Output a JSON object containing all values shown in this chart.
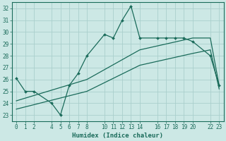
{
  "xlabel": "Humidex (Indice chaleur)",
  "bg_color": "#cce8e5",
  "grid_color": "#aacfcc",
  "line_color": "#1a6b5a",
  "xlim": [
    -0.5,
    23.5
  ],
  "ylim": [
    22.5,
    32.5
  ],
  "xticks": [
    0,
    1,
    2,
    4,
    5,
    6,
    7,
    8,
    10,
    11,
    12,
    13,
    14,
    16,
    17,
    18,
    19,
    20,
    22,
    23
  ],
  "yticks": [
    23,
    24,
    25,
    26,
    27,
    28,
    29,
    30,
    31,
    32
  ],
  "line1_x": [
    0,
    1,
    2,
    4,
    5,
    6,
    7,
    8,
    10,
    11,
    12,
    13,
    14,
    16,
    17,
    18,
    19,
    20,
    22,
    23
  ],
  "line1_y": [
    26.1,
    25.0,
    25.0,
    24.0,
    23.0,
    25.5,
    26.5,
    28.0,
    29.8,
    29.5,
    31.0,
    32.2,
    29.5,
    29.5,
    29.5,
    29.5,
    29.5,
    29.2,
    28.0,
    25.5
  ],
  "line2_x": [
    0,
    8,
    14,
    20,
    22,
    23
  ],
  "line2_y": [
    24.2,
    26.0,
    28.5,
    29.5,
    29.5,
    25.5
  ],
  "line3_x": [
    0,
    8,
    14,
    20,
    22,
    23
  ],
  "line3_y": [
    23.5,
    25.0,
    27.2,
    28.2,
    28.5,
    25.2
  ]
}
